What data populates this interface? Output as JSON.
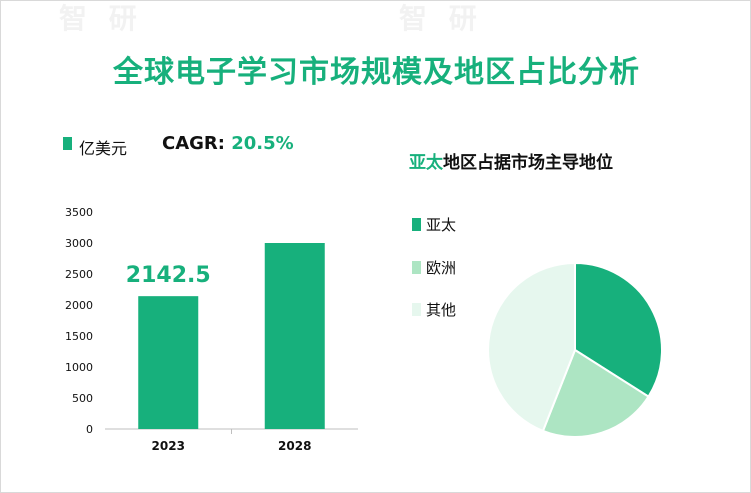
{
  "title": "全球电子学习市场规模及地区占比分析",
  "bar_section": {
    "unit_label": "亿美元",
    "cagr_label": "CAGR: ",
    "cagr_value": "20.5%"
  },
  "pie_section": {
    "title_highlight": "亚太",
    "title_rest": "地区占据市场主导地位"
  },
  "colors": {
    "accent": "#17b07c",
    "europe": "#ade5c3",
    "other": "#e6f7ee"
  },
  "chart_data": [
    {
      "type": "bar",
      "categories": [
        "2023",
        "2028"
      ],
      "values": [
        2142.5,
        3000
      ],
      "value_labels": [
        "2142.5",
        ""
      ],
      "ylim": [
        0,
        3500
      ],
      "yticks": [
        0,
        500,
        1000,
        1500,
        2000,
        2500,
        3000,
        3500
      ],
      "ylabel": "亿美元",
      "grid": false
    },
    {
      "type": "pie",
      "labels": [
        "亚太",
        "欧洲",
        "其他"
      ],
      "values": [
        34,
        22,
        44
      ],
      "colors": [
        "#17b07c",
        "#ade5c3",
        "#e6f7ee"
      ],
      "legend": "left"
    }
  ]
}
